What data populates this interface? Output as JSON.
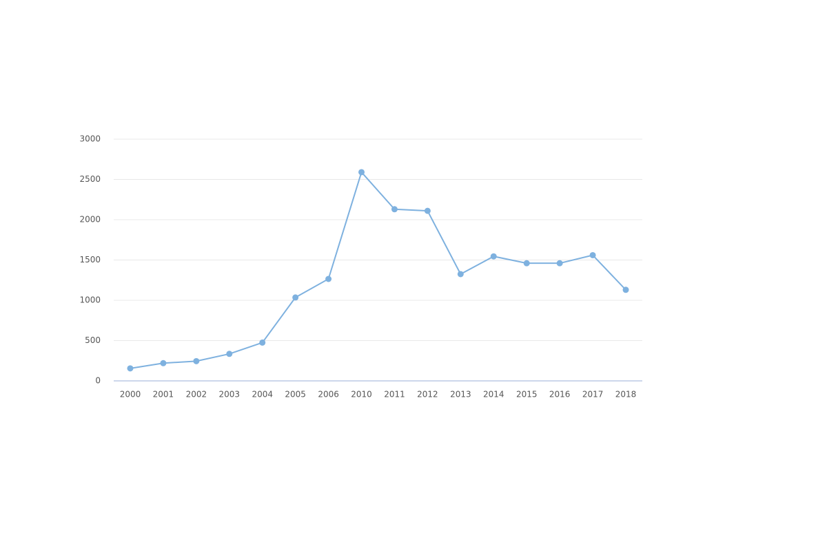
{
  "chart_data": {
    "type": "line",
    "categories": [
      "2000",
      "2001",
      "2002",
      "2003",
      "2004",
      "2005",
      "2006",
      "2010",
      "2011",
      "2012",
      "2013",
      "2014",
      "2015",
      "2016",
      "2017",
      "2018"
    ],
    "values": [
      155,
      220,
      245,
      335,
      475,
      1035,
      1265,
      2590,
      2130,
      2110,
      1325,
      1545,
      1460,
      1460,
      1560,
      1130
    ],
    "color": "#7eb1df",
    "ylim": [
      0,
      3000
    ],
    "yticks": [
      0,
      500,
      1000,
      1500,
      2000,
      2500,
      3000
    ],
    "grid": true
  }
}
